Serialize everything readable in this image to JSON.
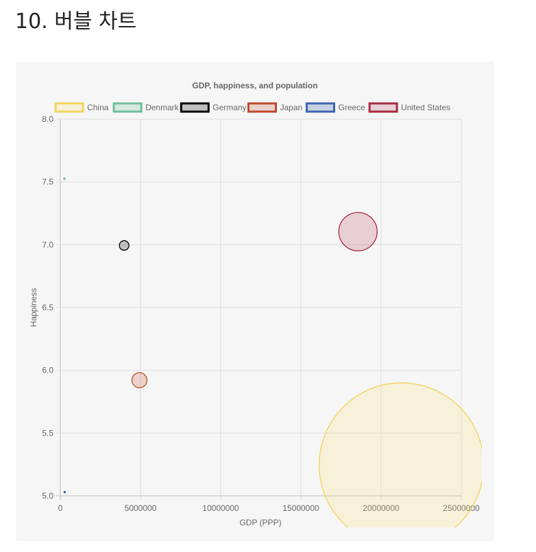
{
  "page": {
    "heading": "10. 버블 차트"
  },
  "colors": {
    "background": "#f6f6f6",
    "grid": "#dcdcdc",
    "axis": "#bbbbbb",
    "text": "#666666"
  },
  "chart_data": {
    "type": "bubble",
    "title": "GDP, happiness, and population",
    "xlabel": "GDP (PPP)",
    "ylabel": "Happiness",
    "xlim": [
      0,
      25000000
    ],
    "ylim": [
      5.0,
      8.0
    ],
    "x_ticks": [
      "0",
      "5000000",
      "10000000",
      "15000000",
      "20000000",
      "25000000"
    ],
    "y_ticks": [
      "5.0",
      "5.5",
      "6.0",
      "6.5",
      "7.0",
      "7.5",
      "8.0"
    ],
    "grid": true,
    "legend_position": "top",
    "series": [
      {
        "name": "China",
        "x": 21269017,
        "y": 5.245,
        "r_px": 120,
        "fill": "rgba(255,221,87,0.18)",
        "stroke": "#f2d35b"
      },
      {
        "name": "Denmark",
        "x": 258702,
        "y": 7.526,
        "r_px": 1,
        "fill": "rgba(111,190,158,0.25)",
        "stroke": "#6fbe9e"
      },
      {
        "name": "Germany",
        "x": 3979083,
        "y": 6.994,
        "r_px": 7,
        "fill": "rgba(0,0,0,0.22)",
        "stroke": "#000000"
      },
      {
        "name": "Japan",
        "x": 4932980,
        "y": 5.921,
        "r_px": 11,
        "fill": "rgba(193,66,28,0.2)",
        "stroke": "#bb4a2b"
      },
      {
        "name": "Greece",
        "x": 276000,
        "y": 5.03,
        "r_px": 1,
        "fill": "rgba(57,98,173,0.25)",
        "stroke": "#3c64b1"
      },
      {
        "name": "United States",
        "x": 18558000,
        "y": 7.104,
        "r_px": 28,
        "fill": "rgba(167,35,59,0.18)",
        "stroke": "#a7283f"
      }
    ]
  }
}
